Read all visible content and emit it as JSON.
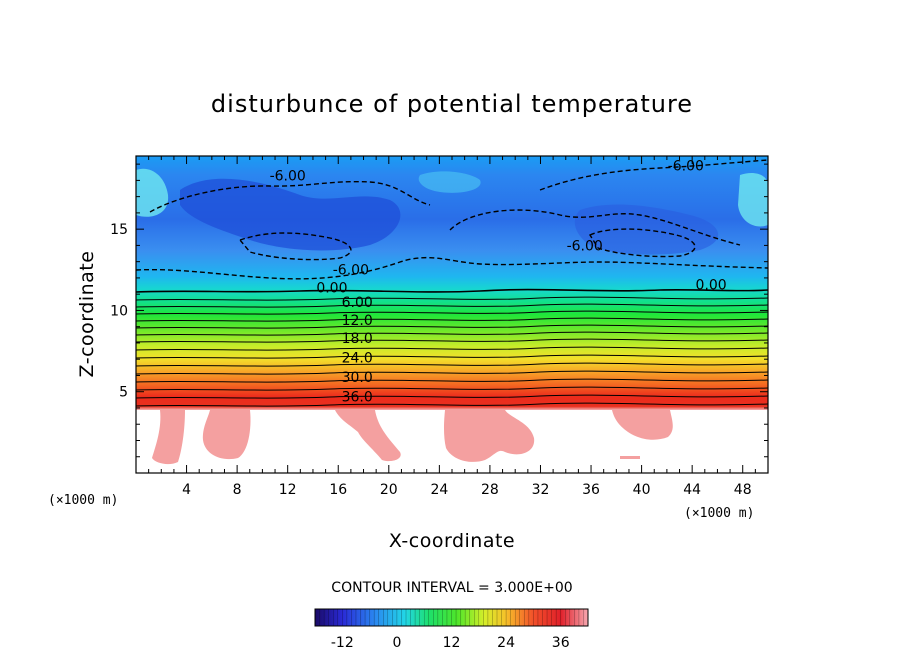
{
  "chart_data": {
    "type": "heatmap",
    "title": "disturbunce of potential temperature",
    "xlabel": "X-coordinate",
    "ylabel": "Z-coordinate",
    "x_unit": "(×1000 m)",
    "y_unit": "(×1000 m)",
    "xlim": [
      0,
      50
    ],
    "ylim": [
      0,
      19.5
    ],
    "x_ticks": [
      4,
      8,
      12,
      16,
      20,
      24,
      28,
      32,
      36,
      40,
      44,
      48
    ],
    "y_ticks": [
      5,
      10,
      15
    ],
    "contour_interval_label": "CONTOUR INTERVAL = 3.000E+00",
    "contour_interval": 3.0,
    "contour_labels": [
      {
        "text": "-6.00",
        "x": 12.0,
        "y": 18.0
      },
      {
        "text": "-6.00",
        "x": 43.5,
        "y": 18.6
      },
      {
        "text": "-6.00",
        "x": 35.5,
        "y": 13.7
      },
      {
        "text": "-6.00",
        "x": 17.0,
        "y": 12.2
      },
      {
        "text": "0.00",
        "x": 15.5,
        "y": 11.1
      },
      {
        "text": "0.00",
        "x": 45.5,
        "y": 11.3
      },
      {
        "text": "6.00",
        "x": 17.5,
        "y": 10.2
      },
      {
        "text": "12.0",
        "x": 17.5,
        "y": 9.1
      },
      {
        "text": "18.0",
        "x": 17.5,
        "y": 8.0
      },
      {
        "text": "24.0",
        "x": 17.5,
        "y": 6.8
      },
      {
        "text": "30.0",
        "x": 17.5,
        "y": 5.6
      },
      {
        "text": "36.0",
        "x": 17.5,
        "y": 4.4
      }
    ],
    "field_profile": [
      {
        "z": 0.0,
        "value": null
      },
      {
        "z": 4.0,
        "value": 40
      },
      {
        "z": 4.6,
        "value": 38
      },
      {
        "z": 5.2,
        "value": 33
      },
      {
        "z": 5.8,
        "value": 29
      },
      {
        "z": 6.6,
        "value": 24
      },
      {
        "z": 7.4,
        "value": 19
      },
      {
        "z": 8.3,
        "value": 14
      },
      {
        "z": 9.3,
        "value": 9
      },
      {
        "z": 10.2,
        "value": 5
      },
      {
        "z": 11.0,
        "value": 1
      },
      {
        "z": 11.6,
        "value": -2
      },
      {
        "z": 12.5,
        "value": -5
      },
      {
        "z": 14.5,
        "value": -9
      },
      {
        "z": 17.0,
        "value": -12
      },
      {
        "z": 19.5,
        "value": -8
      }
    ],
    "colorbar": {
      "min": -18,
      "max": 42,
      "ticks": [
        "-12",
        "0",
        "12",
        "24",
        "36"
      ],
      "tick_values": [
        -12,
        0,
        12,
        24,
        36
      ]
    },
    "grid": false
  }
}
